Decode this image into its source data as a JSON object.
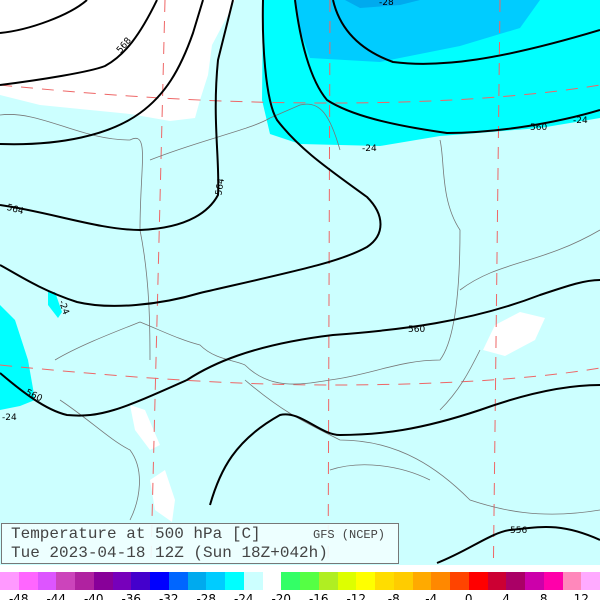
{
  "title": {
    "line1": "Temperature at 500 hPa [C]",
    "line2": "Tue 2023-04-18 12Z (Sun 18Z+042h)",
    "model": "GFS (NCEP)"
  },
  "map": {
    "colors": {
      "background": "#ccffff",
      "minus24": "#00ffff",
      "minus28": "#00ccff",
      "minus32": "#00aaee",
      "above_minus20": "#ffffff",
      "contour": "#000000",
      "border": "#777777",
      "graticule": "#ee6666"
    },
    "contour_labels": {
      "gph_568": "568",
      "gph_564_a": "564",
      "gph_564_b": "564",
      "gph_560_a": "560",
      "gph_560_b": "560",
      "gph_560_c": "560",
      "gph_556": "556",
      "temp_a": "-28",
      "temp_b": "-24",
      "temp_c": "-24",
      "temp_d": "-24",
      "temp_e": "-24"
    }
  },
  "colorbar": {
    "colors": [
      "#ff99ff",
      "#ff66ff",
      "#dd55ff",
      "#cc44bb",
      "#b022a0",
      "#880099",
      "#7700bb",
      "#4400cc",
      "#0000ff",
      "#0066ff",
      "#00aaee",
      "#00ccff",
      "#00ffff",
      "#ccffff",
      "#ffffff",
      "#33ff66",
      "#55ff44",
      "#b0ee22",
      "#ddff00",
      "#ffff00",
      "#ffdd00",
      "#ffcc00",
      "#ffaa00",
      "#ff8800",
      "#ff4400",
      "#ff0000",
      "#cc0033",
      "#aa0066",
      "#cc00aa",
      "#ff00aa",
      "#ff88bb",
      "#ffaaff"
    ],
    "labels": [
      "-48",
      "-44",
      "-40",
      "-36",
      "-32",
      "-28",
      "-24",
      "-20",
      "-16",
      "-12",
      "-8",
      "-4",
      "0",
      "4",
      "8",
      "12"
    ]
  }
}
